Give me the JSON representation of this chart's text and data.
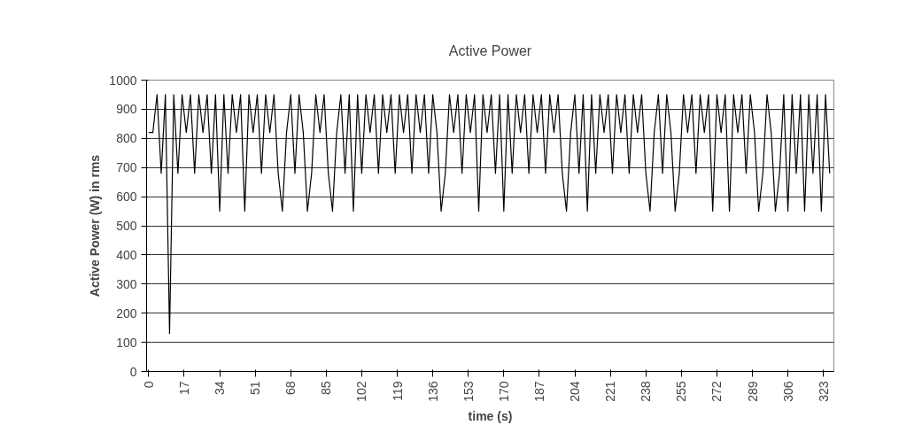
{
  "chart_data": {
    "type": "line",
    "title": "Active Power",
    "xlabel": "time (s)",
    "ylabel": "Active Power (W) in rms",
    "x": [
      0,
      2,
      4,
      6,
      8,
      10,
      12,
      14,
      16,
      18,
      20,
      22,
      24,
      26,
      28,
      30,
      32,
      34,
      36,
      38,
      40,
      42,
      44,
      46,
      48,
      50,
      52,
      54,
      56,
      58,
      60,
      62,
      64,
      66,
      68,
      70,
      72,
      74,
      76,
      78,
      80,
      82,
      84,
      86,
      88,
      90,
      92,
      94,
      96,
      98,
      100,
      102,
      104,
      106,
      108,
      110,
      112,
      114,
      116,
      118,
      120,
      122,
      124,
      126,
      128,
      130,
      132,
      134,
      136,
      138,
      140,
      142,
      144,
      146,
      148,
      150,
      152,
      154,
      156,
      158,
      160,
      162,
      164,
      166,
      168,
      170,
      172,
      174,
      176,
      178,
      180,
      182,
      184,
      186,
      188,
      190,
      192,
      194,
      196,
      198,
      200,
      202,
      204,
      206,
      208,
      210,
      212,
      214,
      216,
      218,
      220,
      222,
      224,
      226,
      228,
      230,
      232,
      234,
      236,
      238,
      240,
      242,
      244,
      246,
      248,
      250,
      252,
      254,
      256,
      258,
      260,
      262,
      264,
      266,
      268,
      270,
      272,
      274,
      276,
      278,
      280,
      282,
      284,
      286,
      288,
      290,
      292,
      294,
      296,
      298,
      300,
      302,
      304,
      306,
      308,
      310,
      312,
      314,
      316,
      318,
      320,
      322,
      324,
      326
    ],
    "series": [
      {
        "color": "#000000",
        "values": [
          820,
          820,
          950,
          680,
          950,
          130,
          950,
          680,
          950,
          820,
          950,
          680,
          950,
          820,
          950,
          680,
          950,
          550,
          950,
          680,
          950,
          820,
          950,
          550,
          950,
          820,
          950,
          680,
          950,
          820,
          950,
          680,
          550,
          820,
          950,
          680,
          950,
          820,
          550,
          680,
          950,
          820,
          950,
          680,
          550,
          820,
          950,
          680,
          950,
          550,
          950,
          680,
          950,
          820,
          950,
          680,
          950,
          820,
          950,
          680,
          950,
          820,
          950,
          680,
          950,
          820,
          950,
          680,
          950,
          820,
          550,
          680,
          950,
          820,
          950,
          680,
          950,
          820,
          950,
          550,
          950,
          820,
          950,
          680,
          950,
          550,
          950,
          680,
          950,
          820,
          950,
          680,
          950,
          820,
          950,
          680,
          950,
          820,
          950,
          680,
          550,
          820,
          950,
          680,
          950,
          550,
          950,
          680,
          950,
          820,
          950,
          680,
          950,
          820,
          950,
          680,
          950,
          820,
          950,
          680,
          550,
          820,
          950,
          680,
          950,
          820,
          550,
          680,
          950,
          820,
          950,
          680,
          950,
          820,
          950,
          550,
          950,
          820,
          950,
          550,
          950,
          820,
          950,
          680,
          950,
          820,
          550,
          680,
          950,
          820,
          550,
          680,
          950,
          550,
          950,
          680,
          950,
          550,
          950,
          680,
          950,
          550,
          950,
          680
        ]
      }
    ],
    "xlim": [
      -1,
      328
    ],
    "xticks": [
      0,
      17,
      34,
      51,
      68,
      85,
      102,
      119,
      136,
      153,
      170,
      187,
      204,
      221,
      238,
      255,
      272,
      289,
      306,
      323
    ],
    "ylim": [
      0,
      1000
    ],
    "yticks": [
      0,
      100,
      200,
      300,
      400,
      500,
      600,
      700,
      800,
      900,
      1000
    ],
    "grid": "y",
    "marker": "none",
    "line_style": "solid"
  }
}
